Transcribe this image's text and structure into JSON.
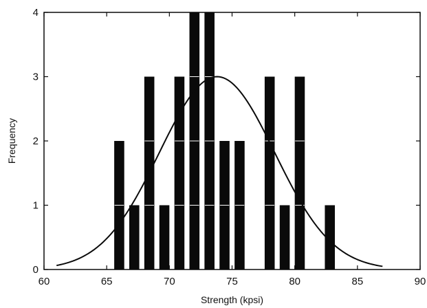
{
  "chart_data": {
    "type": "bar",
    "title": "",
    "xlabel": "Strength (kpsi)",
    "ylabel": "Frequency",
    "xlim": [
      60,
      90
    ],
    "ylim": [
      0,
      4
    ],
    "x_ticks": [
      60,
      65,
      70,
      75,
      80,
      85,
      90
    ],
    "y_ticks": [
      0,
      1,
      2,
      3,
      4
    ],
    "x_tick_labels": [
      "60",
      "65",
      "70",
      "75",
      "80",
      "85",
      "90"
    ],
    "y_tick_labels": [
      "0",
      "1",
      "2",
      "3",
      "4"
    ],
    "grid": false,
    "bar_width": 0.8,
    "bars": [
      {
        "x": 66.0,
        "frequency": 2
      },
      {
        "x": 67.2,
        "frequency": 1
      },
      {
        "x": 68.4,
        "frequency": 3
      },
      {
        "x": 69.6,
        "frequency": 1
      },
      {
        "x": 70.8,
        "frequency": 3
      },
      {
        "x": 72.0,
        "frequency": 4
      },
      {
        "x": 73.2,
        "frequency": 4
      },
      {
        "x": 74.4,
        "frequency": 2
      },
      {
        "x": 75.6,
        "frequency": 2
      },
      {
        "x": 78.0,
        "frequency": 3
      },
      {
        "x": 79.2,
        "frequency": 1
      },
      {
        "x": 80.4,
        "frequency": 3
      },
      {
        "x": 82.8,
        "frequency": 1
      }
    ],
    "fitted_curve": {
      "type": "normal",
      "mean": 73.8,
      "std": 4.6,
      "peak": 3.0,
      "x_range": [
        61.0,
        87.0
      ]
    },
    "colors": {
      "bar": "#0a0a0a",
      "curve": "#0a0a0a",
      "axis": "#0a0a0a",
      "background": "#ffffff",
      "band_divider": "#ffffff"
    }
  }
}
